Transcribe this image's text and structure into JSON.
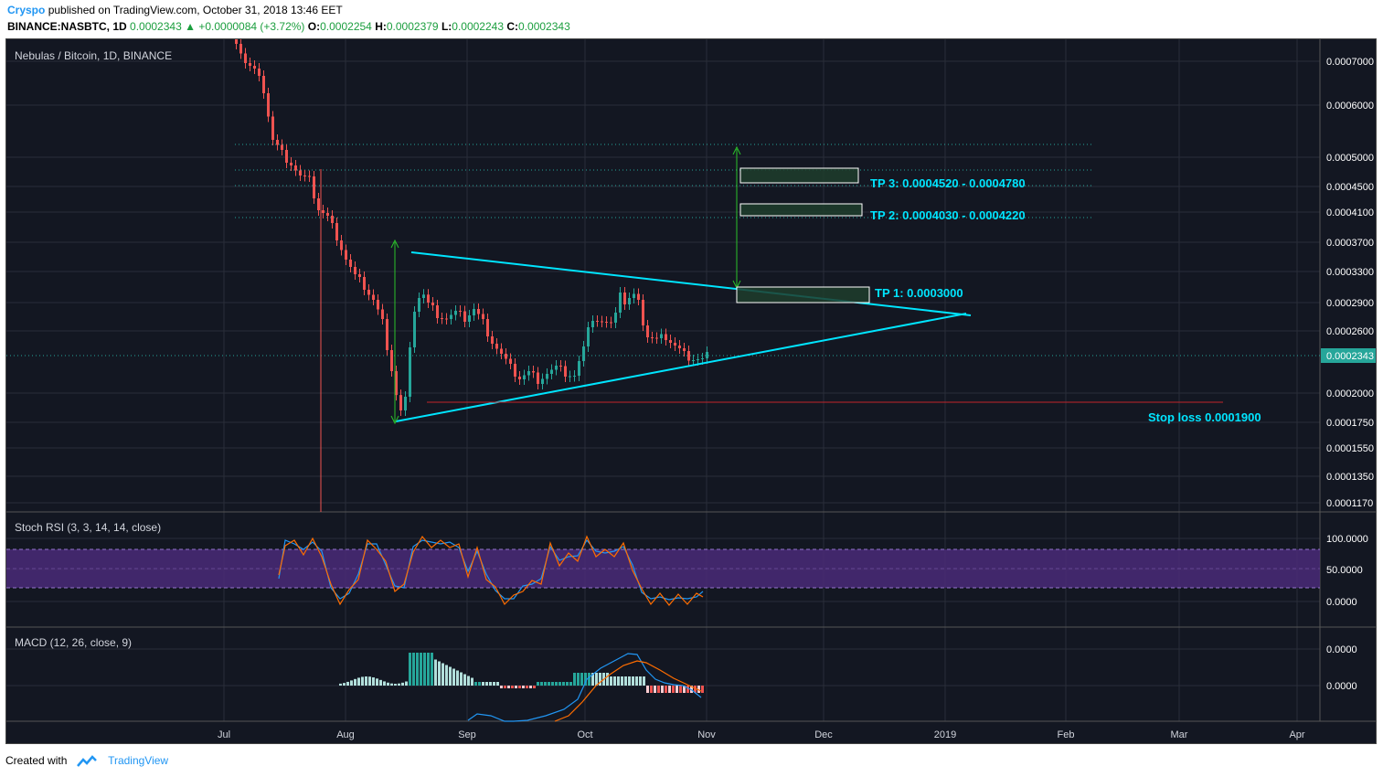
{
  "header": {
    "author": "Cryspo",
    "published": "published on TradingView.com, October 31, 2018 13:46 EET",
    "symbol": "BINANCE:NASBTC, 1D",
    "last": "0.0002343",
    "change": "+0.0000084 (+3.72%)",
    "o_label": "O:",
    "o": "0.0002254",
    "h_label": "H:",
    "h": "0.0002379",
    "l_label": "L:",
    "l": "0.0002243",
    "c_label": "C:",
    "c": "0.0002343"
  },
  "chart": {
    "main_title": "Nebulas / Bitcoin, 1D, BINANCE",
    "stoch_title": "Stoch RSI (3, 3, 14, 14, close)",
    "macd_title": "MACD (12, 26, close, 9)",
    "price_labels": [
      "0.0007000",
      "0.0006000",
      "0.0005000",
      "0.0004500",
      "0.0004100",
      "0.0003700",
      "0.0003300",
      "0.0002900",
      "0.0002600",
      "0.0002000",
      "0.0001750",
      "0.0001550",
      "0.0001350",
      "0.0001170"
    ],
    "current_price": "0.0002343",
    "stoch_labels": [
      "100.0000",
      "50.0000",
      "0.0000"
    ],
    "macd_labels": [
      "0.0000",
      "0.0000"
    ],
    "time_labels": [
      "Jul",
      "Aug",
      "Sep",
      "Oct",
      "Nov",
      "Dec",
      "2019",
      "Feb",
      "Mar",
      "Apr"
    ],
    "annotations": {
      "tp3": "TP 3: 0.0004520 - 0.0004780",
      "tp2": "TP 2: 0.0004030 - 0.0004220",
      "tp1": "TP 1: 0.0003000",
      "stop": "Stop loss 0.0001900"
    },
    "colors": {
      "bg": "#131722",
      "up": "#26a69a",
      "down": "#ef5350",
      "cyan": "#00e5ff",
      "stoch_band": "#4a2a78"
    }
  },
  "footer": {
    "created_with": "Created with",
    "brand": "TradingView",
    "logo_icon": "tradingview-logo-icon"
  }
}
